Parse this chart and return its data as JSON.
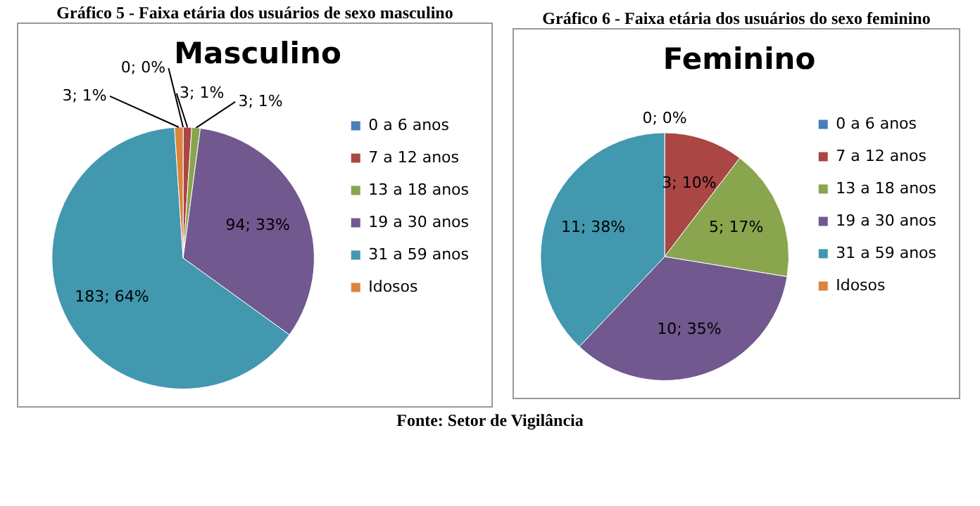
{
  "chart_data": [
    {
      "type": "pie",
      "title": "Gráfico 5 - Faixa etária dos usuários de sexo masculino",
      "subtitle": "Masculino",
      "categories": [
        "0 a 6 anos",
        "7 a 12 anos",
        "13 a 18 anos",
        "19 a 30 anos",
        "31 a 59 anos",
        "Idosos"
      ],
      "values": [
        0,
        3,
        3,
        94,
        183,
        3
      ],
      "colors": [
        "#4a7ebb",
        "#aa4643",
        "#89a54e",
        "#71588f",
        "#4198af",
        "#db843d"
      ],
      "value_labels": [
        "0; 0%",
        "3; 1%",
        "3; 1%",
        "94; 33%",
        "183; 64%",
        "3; 1%"
      ],
      "legend": "right"
    },
    {
      "type": "pie",
      "title": "Gráfico 6 - Faixa etária dos usuários do sexo feminino",
      "subtitle": "Feminino",
      "categories": [
        "0 a 6 anos",
        "7 a 12 anos",
        "13 a 18 anos",
        "19 a 30 anos",
        "31 a 59 anos",
        "Idosos"
      ],
      "values": [
        0,
        3,
        5,
        10,
        11,
        0
      ],
      "colors": [
        "#4a7ebb",
        "#aa4643",
        "#89a54e",
        "#71588f",
        "#4198af",
        "#db843d"
      ],
      "value_labels": [
        "0; 0%",
        "3; 10%",
        "5; 17%",
        "10; 35%",
        "11; 38%",
        null
      ],
      "legend": "right",
      "annotations": [
        "Fonte: Setor de Vigilância"
      ]
    }
  ]
}
